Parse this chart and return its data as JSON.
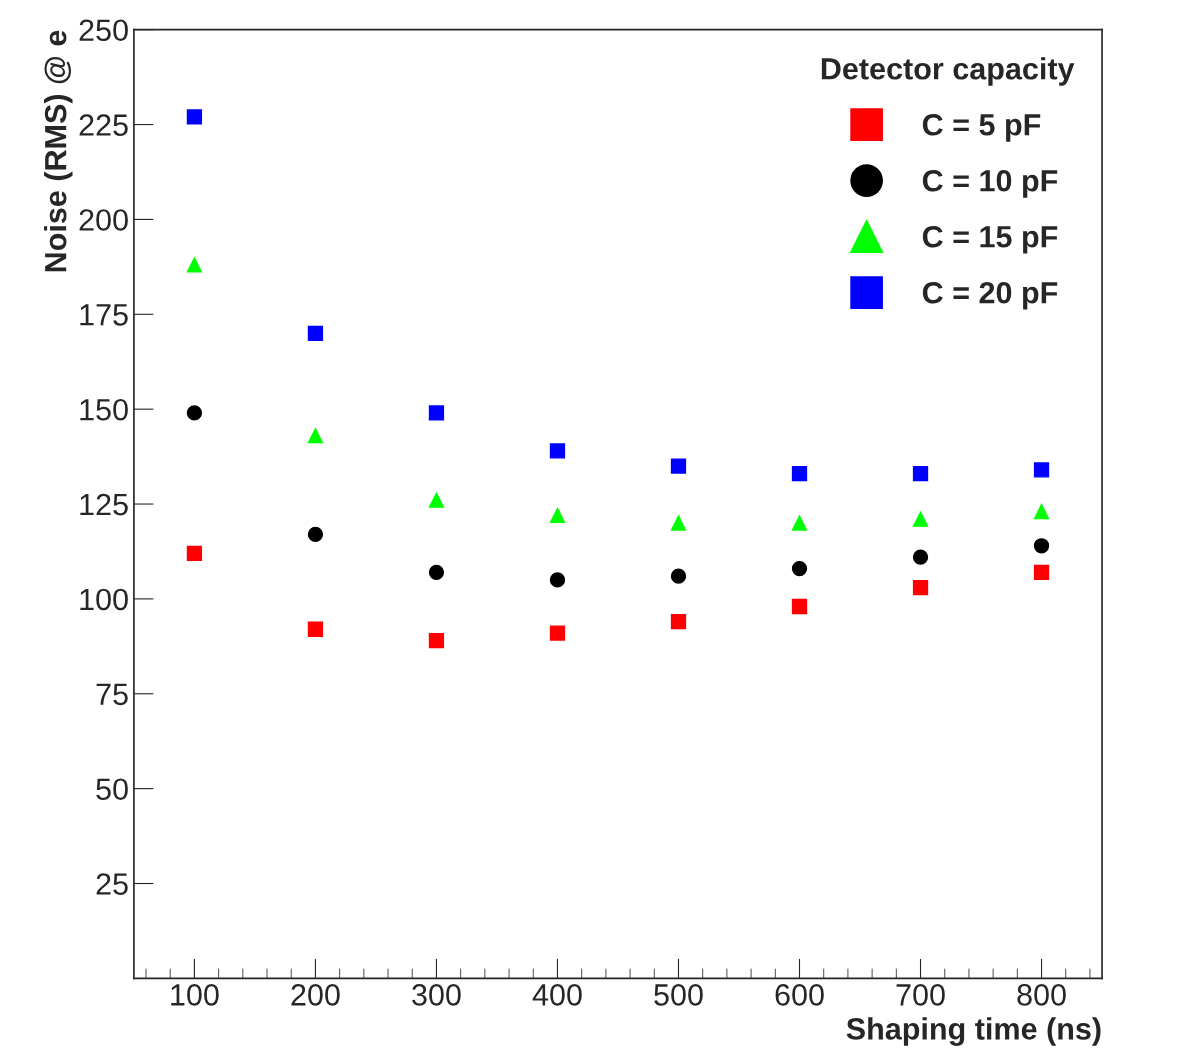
{
  "chart_data": {
    "type": "scatter",
    "xlabel": "Shaping time (ns)",
    "ylabel": "Noise (RMS) @ e",
    "legend_title": "Detector capacity",
    "legend": "top right",
    "grid": false,
    "x": [
      100,
      200,
      300,
      400,
      500,
      600,
      700,
      800
    ],
    "xlim": [
      50,
      850
    ],
    "xticks": [
      100,
      200,
      300,
      400,
      500,
      600,
      700,
      800
    ],
    "ylim": [
      0,
      250
    ],
    "yticks": [
      25,
      50,
      75,
      100,
      125,
      150,
      175,
      200,
      225,
      250
    ],
    "series": [
      {
        "name": "C = 5 pF",
        "color": "#ff0000",
        "marker": "square",
        "values": [
          112,
          92,
          89,
          91,
          94,
          98,
          103,
          107
        ]
      },
      {
        "name": "C = 10 pF",
        "color": "#000000",
        "marker": "circle",
        "values": [
          149,
          117,
          107,
          105,
          106,
          108,
          111,
          114
        ]
      },
      {
        "name": "C = 15 pF",
        "color": "#00ff00",
        "marker": "triangle",
        "values": [
          188,
          143,
          126,
          122,
          120,
          120,
          121,
          123
        ]
      },
      {
        "name": "C = 20 pF",
        "color": "#0000ff",
        "marker": "square",
        "values": [
          227,
          170,
          149,
          139,
          135,
          133,
          133,
          134
        ]
      }
    ]
  }
}
